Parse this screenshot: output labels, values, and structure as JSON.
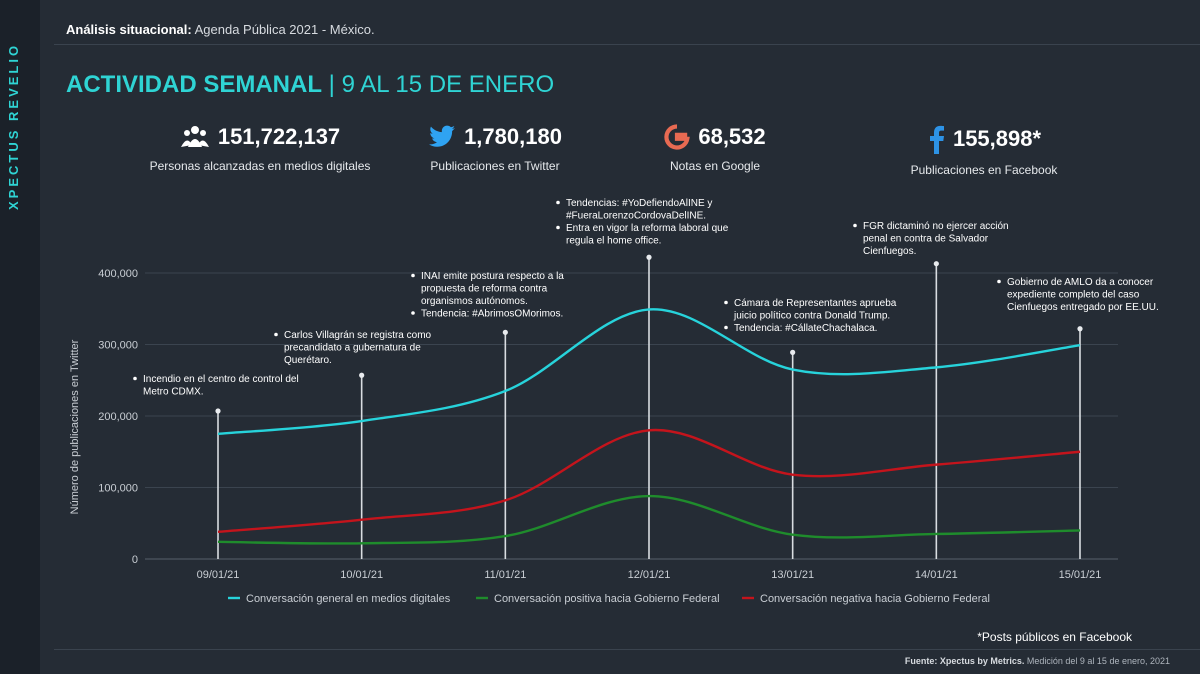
{
  "brand": "XPECTUS REVELIO",
  "header": {
    "label": "Análisis situacional:",
    "text": "Agenda Pública 2021 - México."
  },
  "title": {
    "main": "ACTIVIDAD SEMANAL",
    "sep": "|",
    "range": "9 AL 15 DE ENERO"
  },
  "kpis": [
    {
      "icon": "people-icon",
      "value": "151,722,137",
      "label": "Personas alcanzadas en medios digitales"
    },
    {
      "icon": "twitter-icon",
      "value": "1,780,180",
      "label": "Publicaciones en Twitter"
    },
    {
      "icon": "google-icon",
      "value": "68,532",
      "label": "Notas en Google"
    },
    {
      "icon": "facebook-icon",
      "value": "155,898*",
      "label": "Publicaciones en Facebook"
    }
  ],
  "colors": {
    "accent": "#2fd4d4",
    "general": "#27d3db",
    "positiva": "#1f8c2c",
    "negativa": "#c4141c",
    "google": "#e86a52",
    "twitter": "#2fa3f2",
    "facebook": "#2d93e6"
  },
  "chart_data": {
    "type": "line",
    "ylabel": "Número de publicaciones en Twitter",
    "xlabel": "",
    "ylim": [
      0,
      400000
    ],
    "yticks": [
      0,
      100000,
      200000,
      300000,
      400000
    ],
    "ytick_labels": [
      "0",
      "100,000",
      "200,000",
      "300,000",
      "400,000"
    ],
    "categories": [
      "09/01/21",
      "10/01/21",
      "11/01/21",
      "12/01/21",
      "13/01/21",
      "14/01/21",
      "15/01/21"
    ],
    "grid": true,
    "legend": "bottom",
    "series": [
      {
        "name": "Conversación general en medios digitales",
        "color": "#27d3db",
        "values": [
          175000,
          193000,
          235000,
          349000,
          265000,
          268000,
          299000
        ]
      },
      {
        "name": "Conversación positiva hacia Gobierno Federal",
        "color": "#1f8c2c",
        "values": [
          24000,
          22000,
          32000,
          88000,
          34000,
          35000,
          40000
        ]
      },
      {
        "name": "Conversación negativa hacia Gobierno Federal",
        "color": "#c4141c",
        "values": [
          38000,
          55000,
          82000,
          180000,
          118000,
          132000,
          150000
        ]
      }
    ],
    "annotations": [
      {
        "x": "09/01/21",
        "y": 207000,
        "lines": [
          "Incendio en el centro de control del",
          "Metro CDMX."
        ]
      },
      {
        "x": "10/01/21",
        "y": 257000,
        "lines": [
          "Carlos Villagrán se registra como",
          "precandidato a gubernatura de",
          "Querétaro."
        ]
      },
      {
        "x": "11/01/21",
        "y": 317000,
        "lines": [
          "INAI emite postura respecto a la",
          "propuesta de reforma contra",
          "organismos autónomos.",
          "• Tendencia: #AbrimosOMorimos."
        ]
      },
      {
        "x": "12/01/21",
        "y": 422000,
        "lines": [
          "Tendencias: #YoDefiendoAlINE y",
          "#FueraLorenzoCordovaDelINE.",
          "• Entra en vigor la reforma laboral que",
          "regula el home office."
        ]
      },
      {
        "x": "13/01/21",
        "y": 289000,
        "lines": [
          "Cámara de Representantes aprueba",
          "juicio político contra Donald Trump.",
          "• Tendencia: #CállateChachalaca."
        ]
      },
      {
        "x": "14/01/21",
        "y": 413000,
        "lines": [
          "FGR dictaminó no ejercer acción",
          "penal en contra de Salvador",
          "Cienfuegos."
        ]
      },
      {
        "x": "15/01/21",
        "y": 322000,
        "lines": [
          "Gobierno de AMLO da a conocer",
          "expediente completo del caso",
          "Cienfuegos entregado por EE.UU."
        ]
      }
    ]
  },
  "note": "*Posts públicos en Facebook",
  "footer": {
    "label": "Fuente: Xpectus by Metrics.",
    "text": "Medición del 9 al 15 de enero, 2021"
  }
}
